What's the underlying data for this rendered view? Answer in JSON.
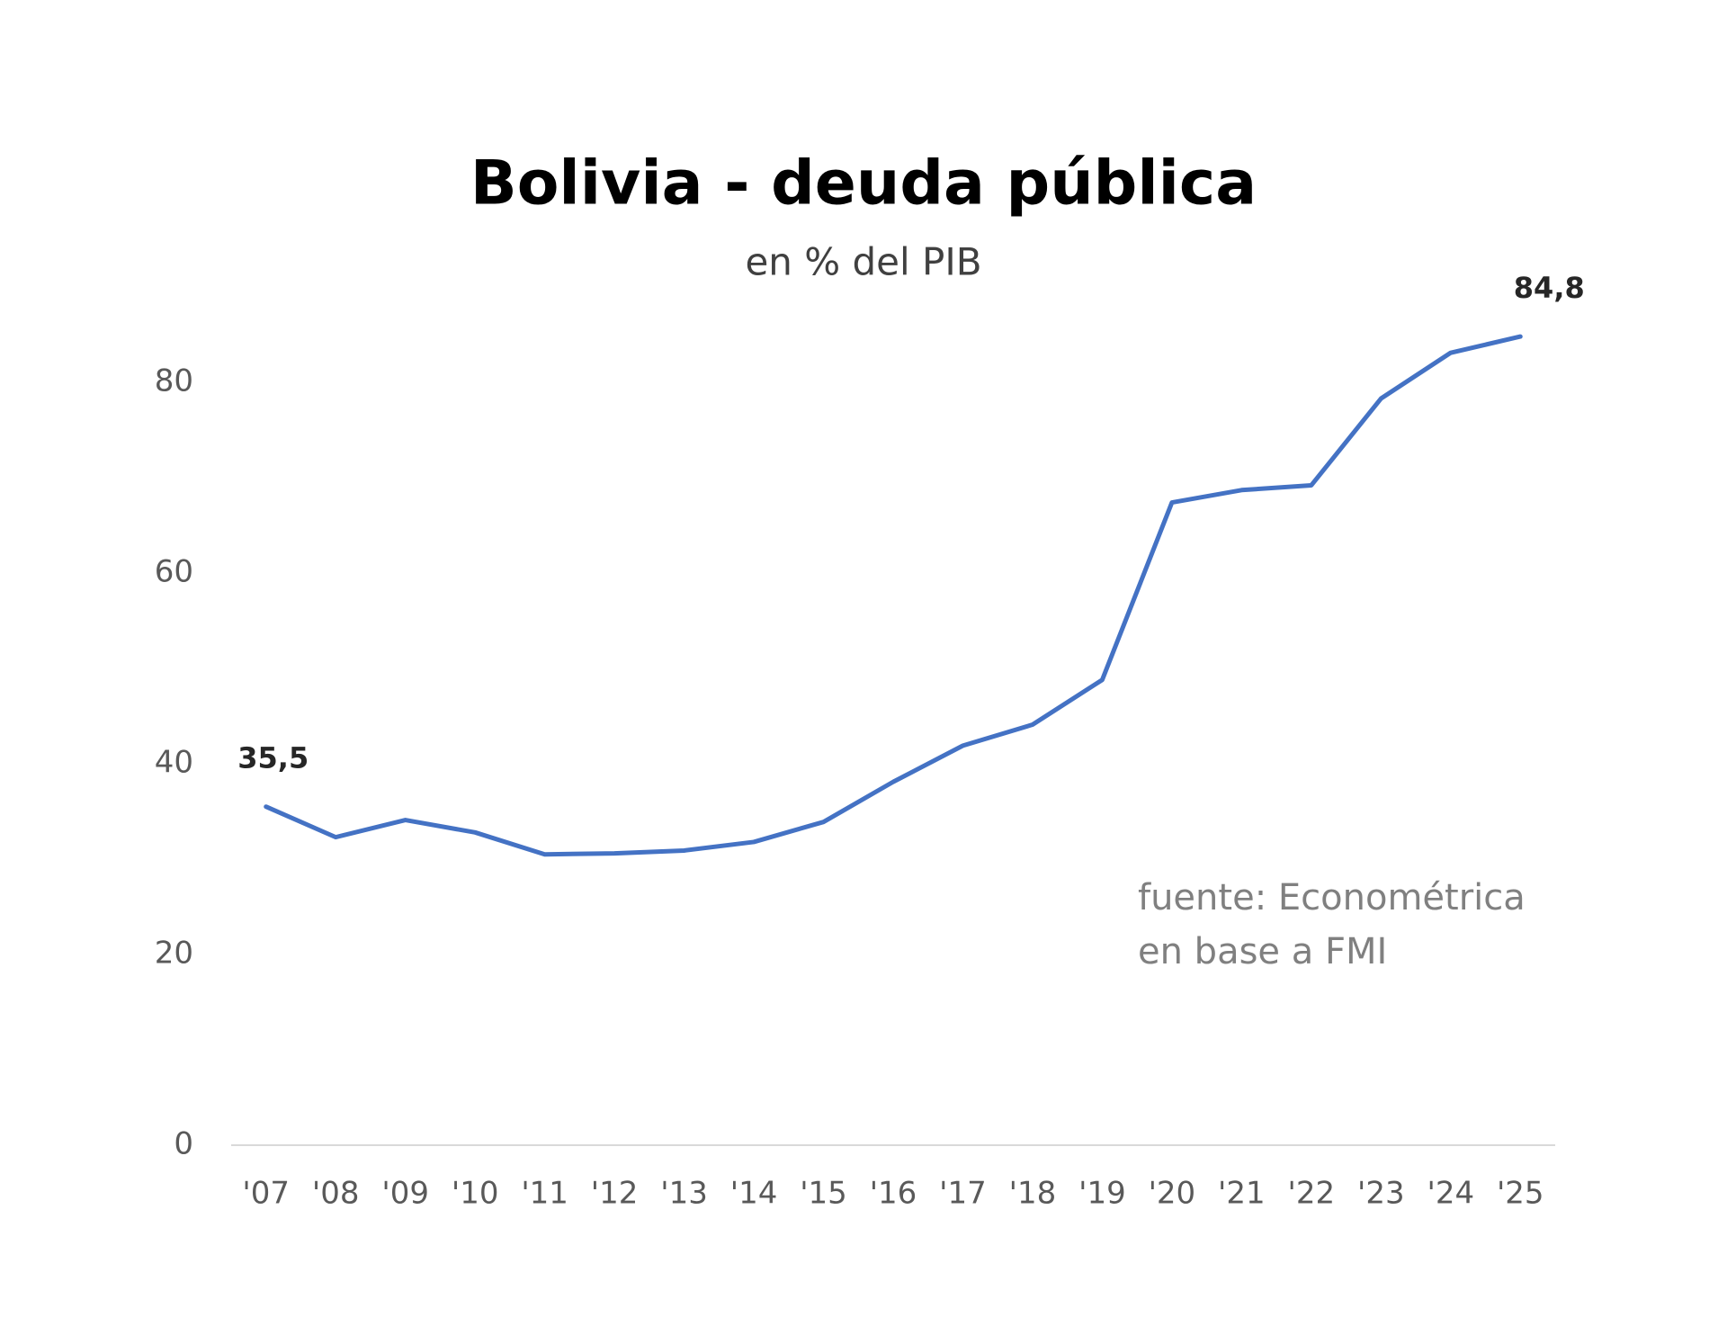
{
  "chart_data": {
    "type": "line",
    "title": "Bolivia - deuda pública",
    "subtitle": "en % del PIB",
    "categories": [
      "'07",
      "'08",
      "'09",
      "'10",
      "'11",
      "'12",
      "'13",
      "'14",
      "'15",
      "'16",
      "'17",
      "'18",
      "'19",
      "'20",
      "'21",
      "'22",
      "'23",
      "'24",
      "'25"
    ],
    "series": [
      {
        "color": "#4472c4",
        "values": [
          35.5,
          32.3,
          34.1,
          32.8,
          30.5,
          30.6,
          30.9,
          31.8,
          33.9,
          38.1,
          41.9,
          44.1,
          48.8,
          67.4,
          68.7,
          69.2,
          78.3,
          83.1,
          84.8
        ],
        "value_labels": [
          "35,5",
          null,
          null,
          null,
          null,
          null,
          null,
          null,
          null,
          null,
          null,
          null,
          null,
          null,
          null,
          null,
          null,
          null,
          "84,8"
        ]
      }
    ],
    "ylim": [
      0,
      90
    ],
    "yticks": [
      0,
      20,
      40,
      60,
      80
    ],
    "grid": false,
    "annotations": [
      "fuente: Econométrica",
      "en base a FMI"
    ]
  }
}
